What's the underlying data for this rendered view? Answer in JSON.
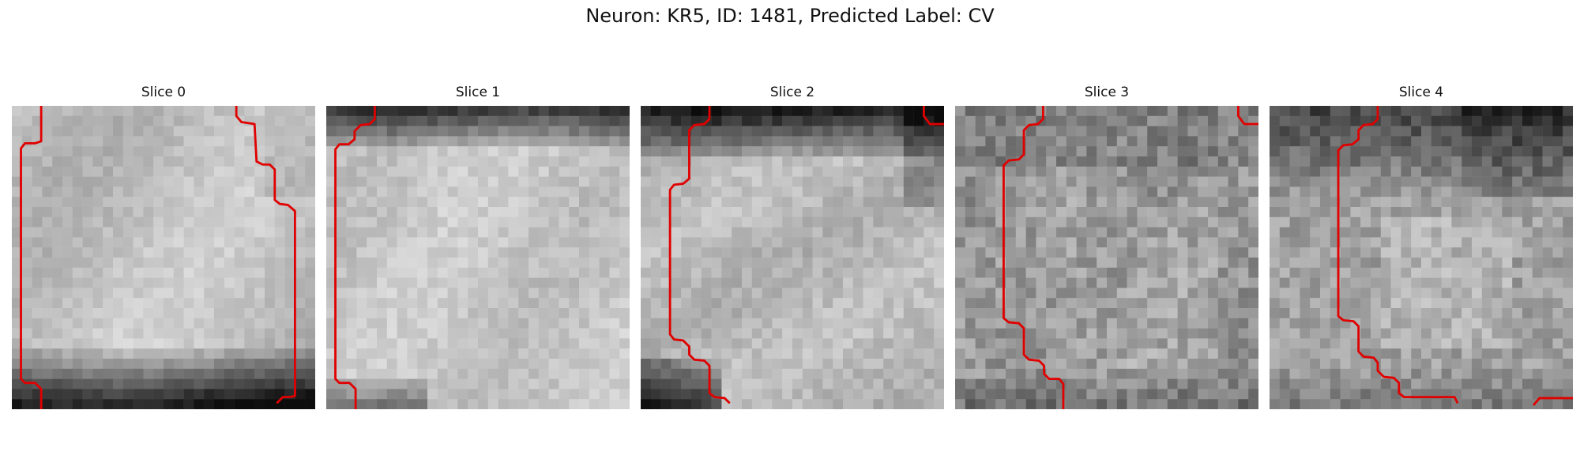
{
  "figure": {
    "title": "Neuron: KR5, ID: 1481, Predicted Label: CV",
    "boundary_color": "#e00000"
  },
  "slices": [
    {
      "title": "Slice 0"
    },
    {
      "title": "Slice 1"
    },
    {
      "title": "Slice 2"
    },
    {
      "title": "Slice 3"
    },
    {
      "title": "Slice 4"
    }
  ]
}
